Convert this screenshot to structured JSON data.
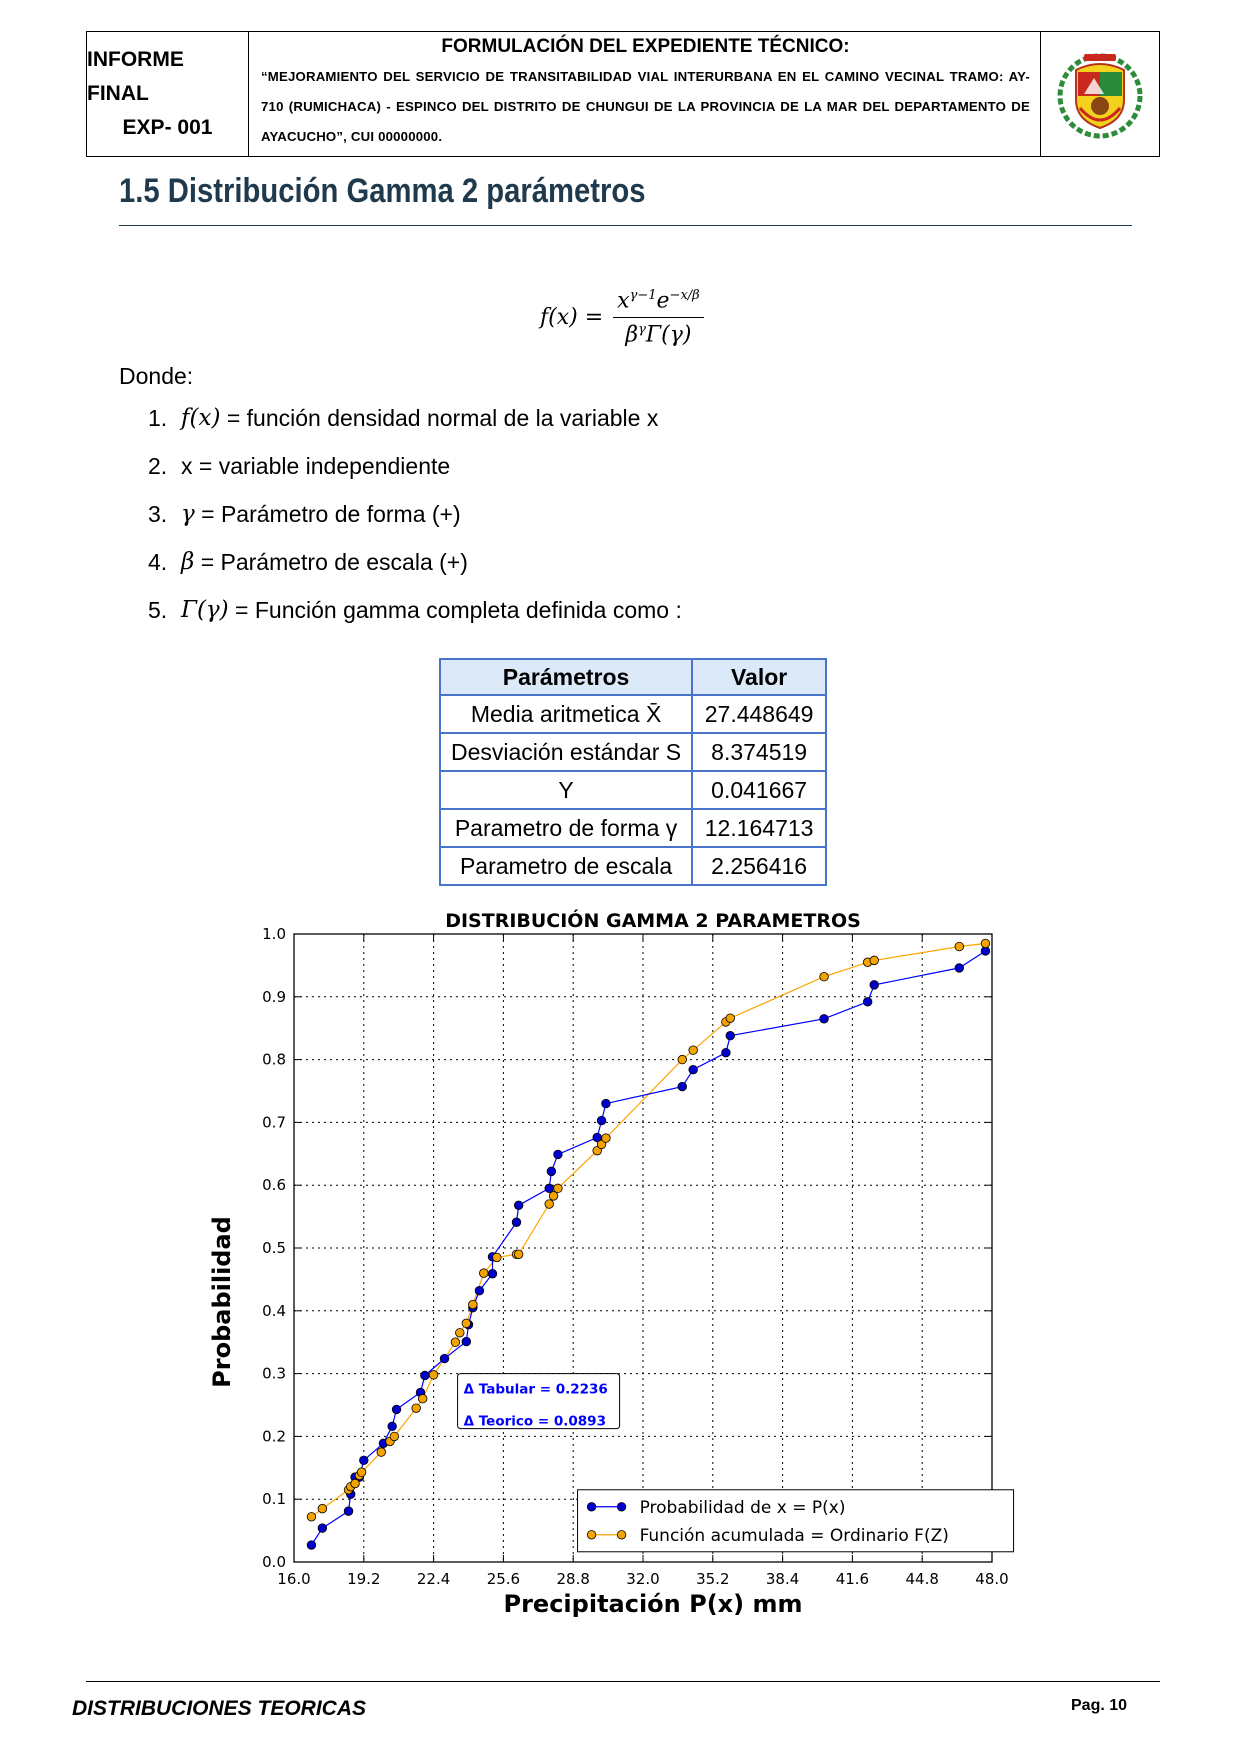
{
  "header": {
    "left_line1": "INFORME FINAL",
    "left_line2": "EXP- 001",
    "title": "FORMULACIÓN DEL EXPEDIENTE TÉCNICO:",
    "description": "“MEJORAMIENTO DEL SERVICIO DE TRANSITABILIDAD VIAL INTERURBANA EN EL CAMINO VECINAL TRAMO: AY-710 (RUMICHACA) - ESPINCO DEL DISTRITO DE CHUNGUI DE LA PROVINCIA DE LA MAR DEL DEPARTAMENTO DE AYACUCHO”, CUI 00000000.",
    "logo_icon": "municipal-coat-of-arms-icon"
  },
  "section": {
    "title": "1.5  Distribución Gamma 2 parámetros"
  },
  "formula": {
    "lhs": "f(x) =",
    "numerator": "x^(γ−1) e^(−x/β)",
    "denominator": "β^γ Γ(γ)"
  },
  "donde": "Donde:",
  "items": [
    {
      "num": "1.",
      "symbol": "f(x)",
      "text": "= función densidad normal de la variable x"
    },
    {
      "num": "2.",
      "symbol": "",
      "text": "x = variable independiente"
    },
    {
      "num": "3.",
      "symbol": "γ",
      "text": "= Parámetro de forma (+)"
    },
    {
      "num": "4.",
      "symbol": "β",
      "text": "= Parámetro de escala (+)"
    },
    {
      "num": "5.",
      "symbol": "Γ(γ)",
      "text": "= Función gamma completa definida como :"
    }
  ],
  "params_table": {
    "headers": [
      "Parámetros",
      "Valor"
    ],
    "rows": [
      [
        "Media aritmetica X̄",
        "27.448649"
      ],
      [
        "Desviación estándar S",
        "8.374519"
      ],
      [
        "Y",
        "0.041667"
      ],
      [
        "Parametro de forma γ",
        "12.164713"
      ],
      [
        "Parametro de escala",
        "2.256416"
      ]
    ]
  },
  "chart_data": {
    "type": "line",
    "title": "DISTRIBUCIÓN GAMMA 2 PARAMETROS",
    "xlabel": "Precipitación P(x) mm",
    "ylabel": "Probabilidad",
    "xlim": [
      16.0,
      48.0
    ],
    "ylim": [
      0.0,
      1.0
    ],
    "x_ticks": [
      "16.0",
      "19.2",
      "22.4",
      "25.6",
      "28.8",
      "32.0",
      "35.2",
      "38.4",
      "41.6",
      "44.8",
      "48.0"
    ],
    "y_ticks": [
      "0.0",
      "0.1",
      "0.2",
      "0.3",
      "0.4",
      "0.5",
      "0.6",
      "0.7",
      "0.8",
      "0.9",
      "1.0"
    ],
    "grid": true,
    "legend_position": "bottom-right",
    "annotations": [
      "Δ Tabular = 0.2236",
      "Δ Teorico = 0.0893"
    ],
    "colors": {
      "series1": "#0000ff",
      "series1_marker": "#0000cc",
      "series2": "#ffa500",
      "series2_marker": "#f5a300"
    },
    "series": [
      {
        "name": "Probabilidad de x = P(x)",
        "x": [
          16.8,
          17.3,
          18.5,
          18.6,
          18.8,
          19.0,
          19.2,
          20.1,
          20.5,
          20.7,
          21.8,
          22.0,
          22.9,
          23.9,
          24.0,
          24.2,
          24.5,
          25.1,
          25.1,
          26.2,
          26.3,
          27.7,
          27.8,
          28.1,
          29.9,
          30.1,
          30.3,
          33.8,
          34.3,
          35.8,
          36.0,
          40.3,
          42.3,
          42.6,
          46.5,
          47.7
        ],
        "y": [
          0.027,
          0.054,
          0.081,
          0.108,
          0.135,
          0.135,
          0.162,
          0.189,
          0.216,
          0.243,
          0.27,
          0.297,
          0.324,
          0.351,
          0.378,
          0.405,
          0.432,
          0.459,
          0.486,
          0.541,
          0.568,
          0.595,
          0.622,
          0.649,
          0.676,
          0.703,
          0.73,
          0.757,
          0.784,
          0.811,
          0.838,
          0.865,
          0.892,
          0.919,
          0.946,
          0.973
        ]
      },
      {
        "name": "Función acumulada = Ordinario F(Z)",
        "x": [
          16.8,
          17.3,
          18.5,
          18.6,
          18.8,
          19.0,
          19.1,
          20.0,
          20.4,
          20.6,
          21.6,
          21.9,
          22.4,
          23.4,
          23.6,
          23.9,
          24.2,
          24.7,
          25.3,
          26.2,
          26.3,
          27.7,
          27.9,
          28.1,
          29.9,
          30.1,
          30.3,
          33.8,
          34.3,
          35.8,
          36.0,
          40.3,
          42.3,
          42.6,
          46.5,
          47.7
        ],
        "y": [
          0.072,
          0.085,
          0.115,
          0.12,
          0.125,
          0.138,
          0.143,
          0.175,
          0.192,
          0.2,
          0.245,
          0.26,
          0.298,
          0.35,
          0.365,
          0.38,
          0.41,
          0.46,
          0.485,
          0.49,
          0.49,
          0.57,
          0.583,
          0.595,
          0.655,
          0.665,
          0.675,
          0.8,
          0.815,
          0.86,
          0.866,
          0.932,
          0.955,
          0.958,
          0.98,
          0.985
        ]
      }
    ]
  },
  "footer": {
    "left": "DISTRIBUCIONES TEORICAS",
    "right": "Pag. 10"
  }
}
